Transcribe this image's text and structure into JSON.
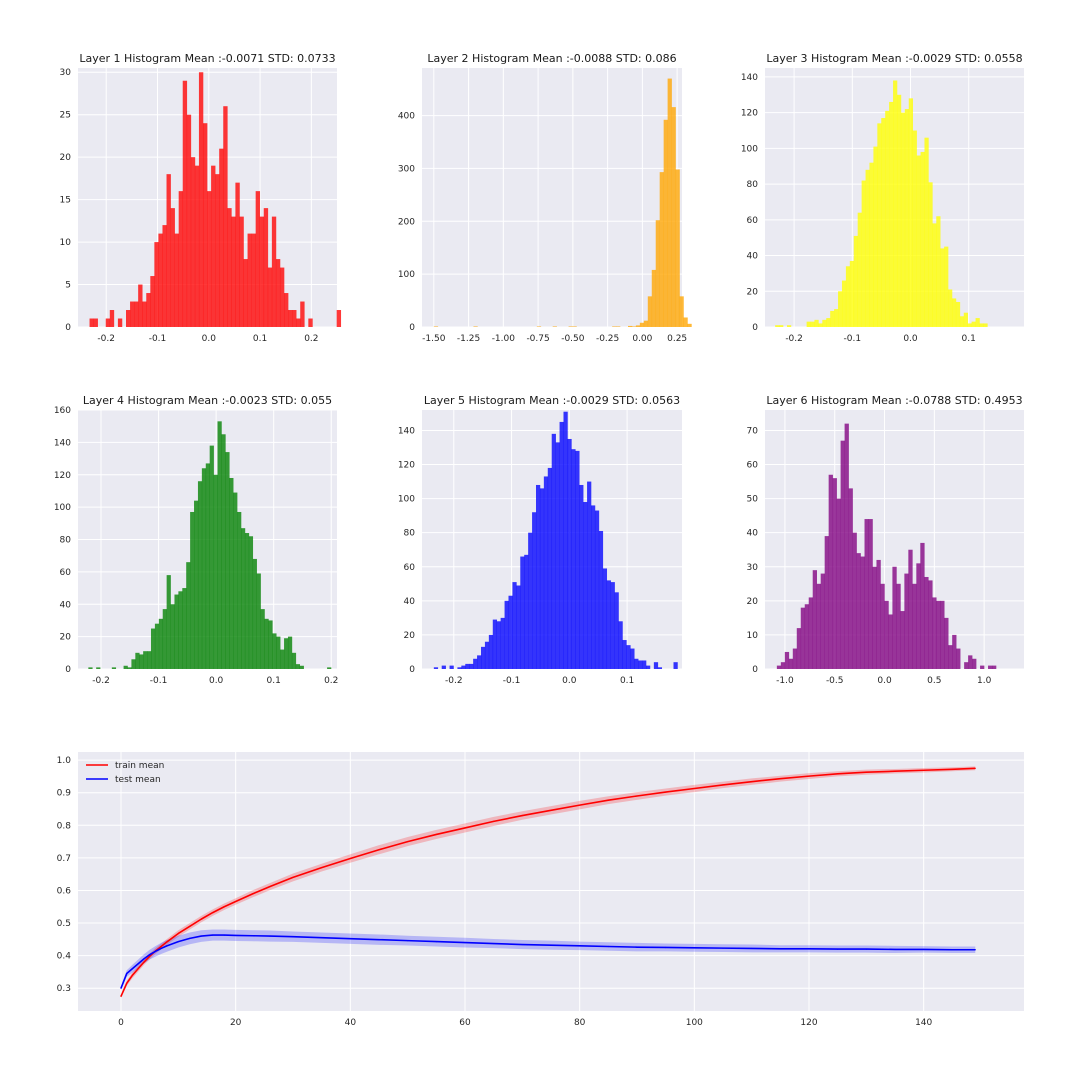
{
  "colors": {
    "background": "#eaeaf2",
    "grid": "#ffffff",
    "text": "#262626"
  },
  "chart_data": [
    {
      "type": "bar",
      "subtype": "histogram",
      "title": "Layer 1 Histogram Mean :-0.0071 STD: 0.0733",
      "color": "#ff0000",
      "xlim": [
        -0.255,
        0.25
      ],
      "ylim": [
        0,
        30.5
      ],
      "xticks": [
        -0.2,
        -0.1,
        0.0,
        0.1,
        0.2
      ],
      "xticklabels": [
        "-0.2",
        "-0.1",
        "0.0",
        "0.1",
        "0.2"
      ],
      "yticks": [
        0,
        5,
        10,
        15,
        20,
        25,
        30
      ],
      "bin_start": -0.2325,
      "bin_width": 0.0079,
      "counts": [
        1,
        1,
        0,
        0,
        1,
        2,
        0,
        1,
        0,
        2,
        3,
        3,
        5,
        3,
        4,
        6,
        10,
        11,
        12,
        18,
        14,
        11,
        16,
        29,
        25,
        20,
        19,
        30,
        24,
        16,
        19,
        18,
        21,
        26,
        14,
        13,
        17,
        13,
        8,
        11,
        11,
        16,
        13,
        14,
        7,
        13,
        8,
        7,
        4,
        2,
        2,
        1,
        3,
        0,
        1,
        0,
        0,
        0,
        0,
        0,
        0,
        2
      ]
    },
    {
      "type": "bar",
      "subtype": "histogram",
      "title": "Layer 2 Histogram Mean :-0.0088 STD: 0.086",
      "color": "#ffa500",
      "xlim": [
        -1.585,
        0.285
      ],
      "ylim": [
        0,
        490
      ],
      "xticks": [
        -1.5,
        -1.25,
        -1.0,
        -0.75,
        -0.5,
        -0.25,
        0.0,
        0.25
      ],
      "xticklabels": [
        "-1.50",
        "-1.25",
        "-1.00",
        "-0.75",
        "-0.50",
        "-0.25",
        "0.00",
        "0.25"
      ],
      "yticks": [
        0,
        100,
        200,
        300,
        400
      ],
      "bin_start": -1.5,
      "bin_width": 0.0285,
      "counts": [
        1,
        0,
        0,
        0,
        0,
        0,
        0,
        0,
        0,
        0,
        1,
        0,
        0,
        0,
        0,
        0,
        0,
        0,
        0,
        0,
        0,
        0,
        0,
        0,
        0,
        0,
        1,
        0,
        0,
        0,
        1,
        0,
        0,
        0,
        1,
        1,
        0,
        0,
        0,
        0,
        0,
        0,
        0,
        0,
        0,
        1,
        1,
        0,
        0,
        2,
        1,
        3,
        8,
        12,
        58,
        108,
        202,
        293,
        392,
        470,
        416,
        298,
        58,
        18,
        6
      ]
    },
    {
      "type": "bar",
      "subtype": "histogram",
      "title": "Layer 3 Histogram Mean :-0.0029 STD: 0.0558",
      "color": "#ffff00",
      "xlim": [
        -0.25,
        0.195
      ],
      "ylim": [
        0,
        145
      ],
      "xticks": [
        -0.2,
        -0.1,
        0.0,
        0.1
      ],
      "xticklabels": [
        "-0.2",
        "-0.1",
        "0.0",
        "0.1"
      ],
      "yticks": [
        0,
        20,
        40,
        60,
        80,
        100,
        120,
        140
      ],
      "bin_start": -0.2325,
      "bin_width": 0.00675,
      "counts": [
        1,
        1,
        0,
        1,
        0,
        0,
        0,
        0,
        3,
        3,
        4,
        2,
        4,
        5,
        9,
        10,
        20,
        26,
        34,
        37,
        51,
        64,
        82,
        88,
        92,
        101,
        114,
        117,
        121,
        126,
        138,
        130,
        120,
        122,
        128,
        110,
        96,
        98,
        106,
        81,
        58,
        62,
        44,
        45,
        21,
        16,
        14,
        6,
        8,
        2,
        3,
        5,
        2,
        2,
        0,
        0
      ]
    },
    {
      "type": "bar",
      "subtype": "histogram",
      "title": "Layer 4 Histogram Mean :-0.0023 STD: 0.055",
      "color": "#008000",
      "xlim": [
        -0.24,
        0.21
      ],
      "ylim": [
        0,
        160
      ],
      "xticks": [
        -0.2,
        -0.1,
        0.0,
        0.1,
        0.2
      ],
      "xticklabels": [
        "-0.2",
        "-0.1",
        "0.0",
        "0.1",
        "0.2"
      ],
      "yticks": [
        0,
        20,
        40,
        60,
        80,
        100,
        120,
        140,
        160
      ],
      "bin_start": -0.222,
      "bin_width": 0.0068,
      "counts": [
        1,
        0,
        1,
        0,
        0,
        0,
        1,
        0,
        0,
        2,
        1,
        6,
        10,
        9,
        11,
        11,
        25,
        28,
        31,
        37,
        58,
        40,
        46,
        48,
        50,
        66,
        97,
        104,
        116,
        124,
        127,
        138,
        120,
        153,
        145,
        134,
        118,
        109,
        97,
        87,
        84,
        82,
        68,
        59,
        37,
        31,
        30,
        22,
        20,
        12,
        19,
        20,
        10,
        3,
        2,
        0,
        0,
        0,
        0,
        0,
        0,
        1
      ]
    },
    {
      "type": "bar",
      "subtype": "histogram",
      "title": "Layer 5 Histogram Mean :-0.0029 STD: 0.0563",
      "color": "#0000ff",
      "xlim": [
        -0.255,
        0.195
      ],
      "ylim": [
        0,
        152
      ],
      "xticks": [
        -0.2,
        -0.1,
        0.0,
        0.1
      ],
      "xticklabels": [
        "-0.2",
        "-0.1",
        "0.0",
        "0.1"
      ],
      "yticks": [
        0,
        20,
        40,
        60,
        80,
        100,
        120,
        140
      ],
      "bin_start": -0.2345,
      "bin_width": 0.0068,
      "counts": [
        1,
        0,
        2,
        0,
        2,
        0,
        1,
        2,
        3,
        3,
        6,
        8,
        13,
        16,
        20,
        29,
        28,
        30,
        40,
        43,
        51,
        49,
        66,
        67,
        80,
        92,
        108,
        106,
        113,
        118,
        138,
        133,
        145,
        151,
        135,
        129,
        128,
        108,
        98,
        110,
        96,
        93,
        81,
        59,
        52,
        51,
        45,
        28,
        17,
        14,
        12,
        6,
        5,
        5,
        2,
        0,
        4,
        1,
        0,
        0,
        0,
        4,
        0
      ]
    },
    {
      "type": "bar",
      "subtype": "histogram",
      "title": "Layer 6 Histogram Mean :-0.0788 STD: 0.4953",
      "color": "#800080",
      "xlim": [
        -1.2,
        1.4
      ],
      "ylim": [
        0,
        76
      ],
      "xticks": [
        -1.0,
        -0.5,
        0.0,
        0.5,
        1.0
      ],
      "xticklabels": [
        "-1.0",
        "-0.5",
        "0.0",
        "0.5",
        "1.0"
      ],
      "yticks": [
        0,
        10,
        20,
        30,
        40,
        50,
        60,
        70
      ],
      "bin_start": -1.081,
      "bin_width": 0.04,
      "counts": [
        1,
        2,
        5,
        3,
        6,
        12,
        18,
        19,
        21,
        29,
        25,
        28,
        39,
        57,
        56,
        50,
        67,
        72,
        53,
        40,
        34,
        33,
        44,
        44,
        30,
        32,
        25,
        20,
        16,
        30,
        25,
        17,
        28,
        35,
        25,
        31,
        37,
        27,
        26,
        21,
        20,
        20,
        15,
        7,
        10,
        6,
        0,
        2,
        4,
        3,
        0,
        1,
        0,
        1,
        1
      ]
    },
    {
      "type": "line",
      "xlim": [
        -7.5,
        157.5
      ],
      "ylim": [
        0.23,
        1.025
      ],
      "xticks": [
        0,
        20,
        40,
        60,
        80,
        100,
        120,
        140
      ],
      "xticklabels": [
        "0",
        "20",
        "40",
        "60",
        "80",
        "100",
        "120",
        "140"
      ],
      "yticks": [
        0.3,
        0.4,
        0.5,
        0.6,
        0.7,
        0.8,
        0.9,
        1.0
      ],
      "yticklabels": [
        "0.3",
        "0.4",
        "0.5",
        "0.6",
        "0.7",
        "0.8",
        "0.9",
        "1.0"
      ],
      "legend_position": "upper-left",
      "series": [
        {
          "name": "train mean",
          "color": "#ff0000",
          "band_color": "#ff0000",
          "x": [
            0,
            1,
            2,
            3,
            4,
            5,
            6,
            7,
            8,
            10,
            12,
            14,
            16,
            18,
            20,
            23,
            26,
            30,
            35,
            40,
            45,
            50,
            55,
            60,
            65,
            70,
            75,
            80,
            85,
            90,
            95,
            100,
            105,
            110,
            115,
            120,
            125,
            130,
            135,
            140,
            145,
            149
          ],
          "y": [
            0.275,
            0.315,
            0.34,
            0.36,
            0.38,
            0.398,
            0.414,
            0.428,
            0.442,
            0.468,
            0.49,
            0.512,
            0.532,
            0.55,
            0.566,
            0.59,
            0.612,
            0.64,
            0.67,
            0.698,
            0.725,
            0.75,
            0.772,
            0.792,
            0.812,
            0.83,
            0.846,
            0.862,
            0.877,
            0.89,
            0.902,
            0.913,
            0.924,
            0.934,
            0.943,
            0.951,
            0.958,
            0.963,
            0.966,
            0.969,
            0.972,
            0.975
          ],
          "band": [
            0.005,
            0.008,
            0.009,
            0.009,
            0.009,
            0.009,
            0.009,
            0.009,
            0.009,
            0.01,
            0.01,
            0.01,
            0.01,
            0.01,
            0.01,
            0.011,
            0.011,
            0.012,
            0.012,
            0.013,
            0.014,
            0.014,
            0.014,
            0.014,
            0.014,
            0.013,
            0.013,
            0.013,
            0.012,
            0.012,
            0.011,
            0.011,
            0.01,
            0.01,
            0.009,
            0.009,
            0.008,
            0.008,
            0.007,
            0.007,
            0.006,
            0.006
          ]
        },
        {
          "name": "test mean",
          "color": "#0000ff",
          "band_color": "#0000ff",
          "x": [
            0,
            1,
            2,
            3,
            4,
            5,
            6,
            7,
            8,
            10,
            12,
            14,
            16,
            18,
            20,
            23,
            26,
            30,
            35,
            40,
            45,
            50,
            55,
            60,
            65,
            70,
            75,
            80,
            85,
            90,
            95,
            100,
            105,
            110,
            115,
            120,
            125,
            130,
            135,
            140,
            145,
            149
          ],
          "y": [
            0.3,
            0.345,
            0.36,
            0.375,
            0.39,
            0.403,
            0.413,
            0.422,
            0.43,
            0.443,
            0.453,
            0.46,
            0.463,
            0.463,
            0.462,
            0.461,
            0.46,
            0.458,
            0.455,
            0.452,
            0.449,
            0.446,
            0.443,
            0.44,
            0.437,
            0.434,
            0.432,
            0.43,
            0.428,
            0.426,
            0.425,
            0.424,
            0.423,
            0.422,
            0.421,
            0.421,
            0.42,
            0.42,
            0.419,
            0.419,
            0.418,
            0.418
          ],
          "band": [
            0.005,
            0.01,
            0.012,
            0.013,
            0.014,
            0.015,
            0.016,
            0.017,
            0.018,
            0.018,
            0.018,
            0.018,
            0.017,
            0.017,
            0.017,
            0.017,
            0.017,
            0.016,
            0.016,
            0.016,
            0.016,
            0.015,
            0.015,
            0.015,
            0.014,
            0.014,
            0.014,
            0.013,
            0.013,
            0.013,
            0.012,
            0.012,
            0.012,
            0.012,
            0.011,
            0.011,
            0.011,
            0.011,
            0.011,
            0.01,
            0.01,
            0.01
          ]
        }
      ]
    }
  ]
}
